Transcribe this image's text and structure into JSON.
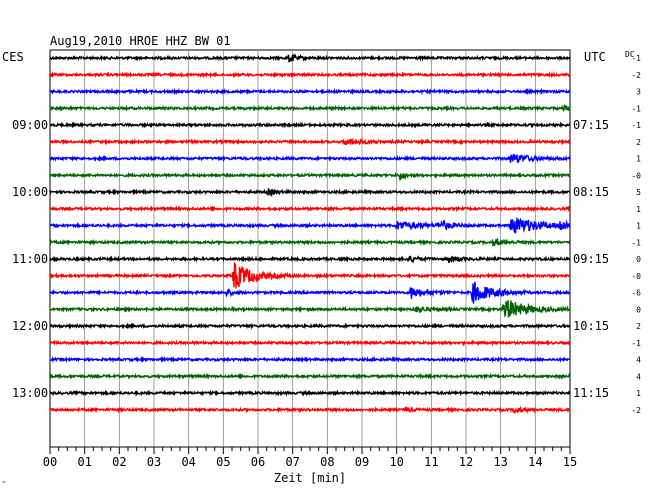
{
  "chart_data": {
    "type": "line",
    "title": "Aug19,2010   HROE HHZ BW 01",
    "left_timezone": "CES",
    "right_timezone": "UTC",
    "dc_label": "DC",
    "xlabel": "Zeit [min]",
    "xlim": [
      0,
      15
    ],
    "x_ticks": [
      "00",
      "01",
      "02",
      "03",
      "04",
      "05",
      "06",
      "07",
      "08",
      "09",
      "10",
      "11",
      "12",
      "13",
      "14",
      "15"
    ],
    "trace_colors": [
      "#000000",
      "#ff0000",
      "#0000ff",
      "#006400"
    ],
    "left_hour_labels": [
      {
        "trace": 4,
        "label": "09:00"
      },
      {
        "trace": 8,
        "label": "10:00"
      },
      {
        "trace": 12,
        "label": "11:00"
      },
      {
        "trace": 16,
        "label": "12:00"
      },
      {
        "trace": 20,
        "label": "13:00"
      }
    ],
    "right_hour_labels": [
      {
        "trace": 4,
        "label": "07:15"
      },
      {
        "trace": 8,
        "label": "08:15"
      },
      {
        "trace": 12,
        "label": "09:15"
      },
      {
        "trace": 16,
        "label": "10:15"
      },
      {
        "trace": 20,
        "label": "11:15"
      }
    ],
    "dc_offsets": [
      "-1",
      "-2",
      "3",
      "-1",
      "-1",
      "2",
      "1",
      "-0",
      "5",
      "1",
      "1",
      "-1",
      "0",
      "-0",
      "-6",
      "0",
      "2",
      "-1",
      "4",
      "4",
      "1",
      "-2"
    ],
    "traces": [
      {
        "index": 0,
        "events": [
          {
            "t": 6.9,
            "amp": 4,
            "dur": 0.3
          }
        ]
      },
      {
        "index": 1,
        "events": []
      },
      {
        "index": 2,
        "events": []
      },
      {
        "index": 3,
        "events": [
          {
            "t": 14.8,
            "amp": 3,
            "dur": 0.4
          }
        ]
      },
      {
        "index": 4,
        "events": []
      },
      {
        "index": 5,
        "events": [
          {
            "t": 8.5,
            "amp": 3,
            "dur": 0.8
          }
        ]
      },
      {
        "index": 6,
        "events": [
          {
            "t": 13.3,
            "amp": 5,
            "dur": 0.8
          }
        ]
      },
      {
        "index": 7,
        "events": [
          {
            "t": 10.1,
            "amp": 5,
            "dur": 0.2
          }
        ]
      },
      {
        "index": 8,
        "events": [
          {
            "t": 6.3,
            "amp": 3,
            "dur": 0.4
          }
        ]
      },
      {
        "index": 9,
        "events": []
      },
      {
        "index": 10,
        "events": [
          {
            "t": 10.0,
            "amp": 4,
            "dur": 1.2
          },
          {
            "t": 11.3,
            "amp": 4,
            "dur": 0.4
          },
          {
            "t": 13.3,
            "amp": 9,
            "dur": 1.2
          },
          {
            "t": 14.7,
            "amp": 4,
            "dur": 0.6
          }
        ]
      },
      {
        "index": 11,
        "events": [
          {
            "t": 12.8,
            "amp": 3,
            "dur": 0.5
          }
        ]
      },
      {
        "index": 12,
        "events": [
          {
            "t": 10.3,
            "amp": 3,
            "dur": 0.5
          },
          {
            "t": 11.5,
            "amp": 3,
            "dur": 0.5
          }
        ]
      },
      {
        "index": 13,
        "events": [
          {
            "t": 5.3,
            "amp": 14,
            "dur": 0.8
          }
        ]
      },
      {
        "index": 14,
        "events": [
          {
            "t": 5.1,
            "amp": 3,
            "dur": 0.3
          },
          {
            "t": 10.4,
            "amp": 6,
            "dur": 0.6
          },
          {
            "t": 12.2,
            "amp": 11,
            "dur": 0.8
          }
        ]
      },
      {
        "index": 15,
        "events": [
          {
            "t": 10.5,
            "amp": 3,
            "dur": 0.6
          },
          {
            "t": 13.1,
            "amp": 11,
            "dur": 0.9
          }
        ]
      },
      {
        "index": 16,
        "events": []
      },
      {
        "index": 17,
        "events": []
      },
      {
        "index": 18,
        "events": []
      },
      {
        "index": 19,
        "events": []
      },
      {
        "index": 20,
        "events": []
      },
      {
        "index": 21,
        "events": [
          {
            "t": 10.3,
            "amp": 2,
            "dur": 0.3
          },
          {
            "t": 13.4,
            "amp": 3,
            "dur": 0.4
          }
        ]
      }
    ]
  }
}
